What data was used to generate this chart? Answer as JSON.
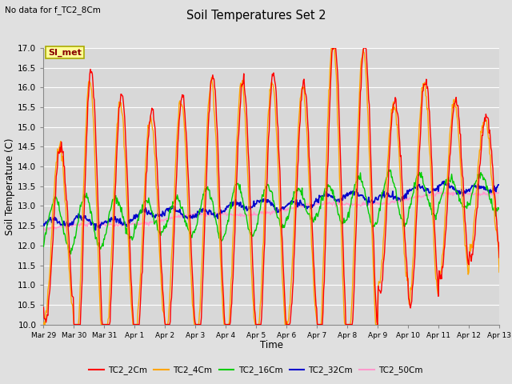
{
  "title": "Soil Temperatures Set 2",
  "subtitle": "No data for f_TC2_8Cm",
  "xlabel": "Time",
  "ylabel": "Soil Temperature (C)",
  "ylim": [
    10.0,
    17.0
  ],
  "yticks": [
    10.0,
    10.5,
    11.0,
    11.5,
    12.0,
    12.5,
    13.0,
    13.5,
    14.0,
    14.5,
    15.0,
    15.5,
    16.0,
    16.5,
    17.0
  ],
  "background_color": "#e0e0e0",
  "plot_bg_color": "#d8d8d8",
  "grid_color": "#ffffff",
  "series": {
    "TC2_2Cm": {
      "color": "#ff0000",
      "lw": 1.0
    },
    "TC2_4Cm": {
      "color": "#ffa500",
      "lw": 1.0
    },
    "TC2_16Cm": {
      "color": "#00cc00",
      "lw": 1.0
    },
    "TC2_32Cm": {
      "color": "#0000cc",
      "lw": 1.2
    },
    "TC2_50Cm": {
      "color": "#ff99cc",
      "lw": 1.0
    }
  },
  "annotation": {
    "text": "SI_met",
    "fontsize": 8,
    "color": "#880000",
    "bg": "#ffff99",
    "border": "#aaaa00"
  },
  "n_days": 15,
  "points_per_day": 48,
  "xtick_labels": [
    "Mar 29",
    "Mar 30",
    "Mar 31",
    "Apr 1",
    "Apr 2",
    "Apr 3",
    "Apr 4",
    "Apr 5",
    "Apr 6",
    "Apr 7",
    "Apr 8",
    "Apr 9",
    "Apr 10",
    "Apr 11",
    "Apr 12",
    "Apr 13"
  ]
}
